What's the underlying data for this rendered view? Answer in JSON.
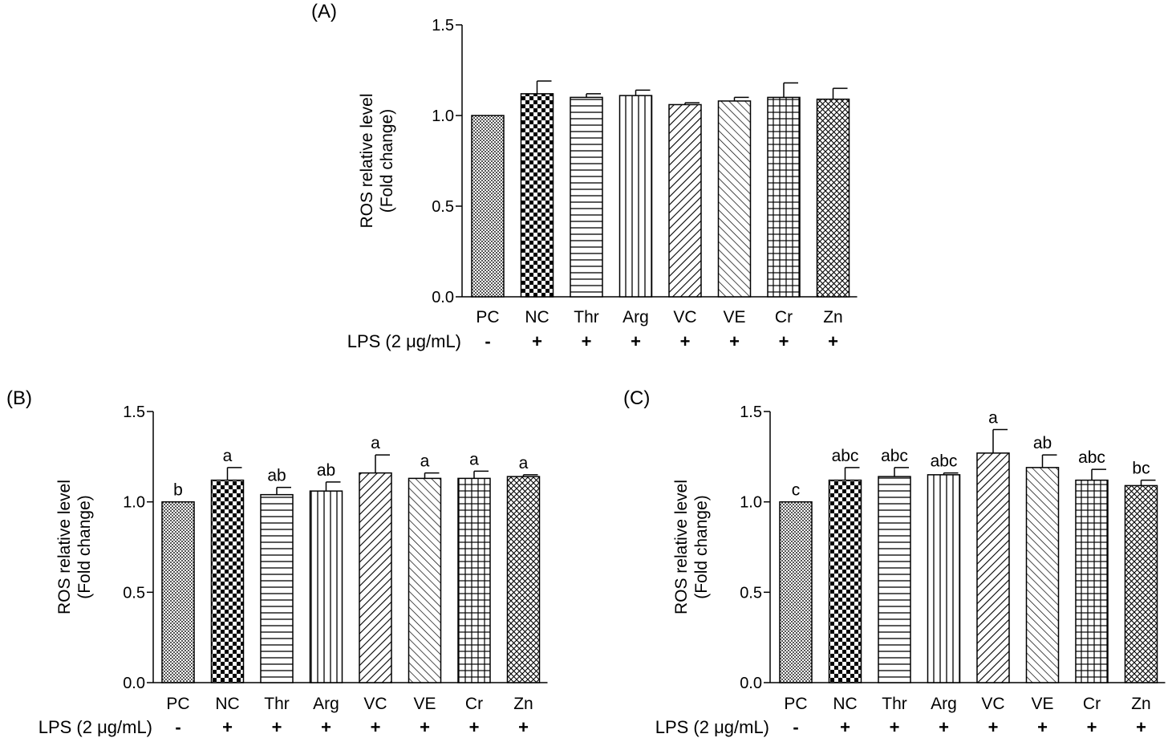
{
  "chart_data": [
    {
      "type": "bar",
      "panel": "(A)",
      "ylabel": "ROS relative level",
      "ylabel2": "(Fold change)",
      "ylim": [
        0,
        1.5
      ],
      "yticks": [
        "0.0",
        "0.5",
        "1.0",
        "1.5"
      ],
      "categories": [
        "PC",
        "NC",
        "Thr",
        "Arg",
        "VC",
        "VE",
        "Cr",
        "Zn"
      ],
      "values": [
        1.0,
        1.12,
        1.1,
        1.11,
        1.06,
        1.08,
        1.1,
        1.09
      ],
      "errors": [
        0.0,
        0.07,
        0.02,
        0.03,
        0.01,
        0.02,
        0.08,
        0.06
      ],
      "letters": [
        "",
        "",
        "",
        "",
        "",
        "",
        "",
        ""
      ],
      "lps_label": "LPS (2 μg/mL)",
      "lps": [
        "-",
        "+",
        "+",
        "+",
        "+",
        "+",
        "+",
        "+"
      ]
    },
    {
      "type": "bar",
      "panel": "(B)",
      "ylabel": "ROS relative level",
      "ylabel2": "(Fold change)",
      "ylim": [
        0,
        1.5
      ],
      "yticks": [
        "0.0",
        "0.5",
        "1.0",
        "1.5"
      ],
      "categories": [
        "PC",
        "NC",
        "Thr",
        "Arg",
        "VC",
        "VE",
        "Cr",
        "Zn"
      ],
      "values": [
        1.0,
        1.12,
        1.04,
        1.06,
        1.16,
        1.13,
        1.13,
        1.14
      ],
      "errors": [
        0.0,
        0.07,
        0.04,
        0.05,
        0.1,
        0.03,
        0.04,
        0.01
      ],
      "letters": [
        "b",
        "a",
        "ab",
        "ab",
        "a",
        "a",
        "a",
        "a"
      ],
      "lps_label": "LPS (2 μg/mL)",
      "lps": [
        "-",
        "+",
        "+",
        "+",
        "+",
        "+",
        "+",
        "+"
      ]
    },
    {
      "type": "bar",
      "panel": "(C)",
      "ylabel": "ROS relative level",
      "ylabel2": "(Fold change)",
      "ylim": [
        0,
        1.5
      ],
      "yticks": [
        "0.0",
        "0.5",
        "1.0",
        "1.5"
      ],
      "categories": [
        "PC",
        "NC",
        "Thr",
        "Arg",
        "VC",
        "VE",
        "Cr",
        "Zn"
      ],
      "values": [
        1.0,
        1.12,
        1.14,
        1.15,
        1.27,
        1.19,
        1.12,
        1.09
      ],
      "errors": [
        0.0,
        0.07,
        0.05,
        0.01,
        0.13,
        0.07,
        0.06,
        0.03
      ],
      "letters": [
        "c",
        "abc",
        "abc",
        "abc",
        "a",
        "ab",
        "abc",
        "bc"
      ],
      "lps_label": "LPS (2 μg/mL)",
      "lps": [
        "-",
        "+",
        "+",
        "+",
        "+",
        "+",
        "+",
        "+"
      ]
    }
  ]
}
